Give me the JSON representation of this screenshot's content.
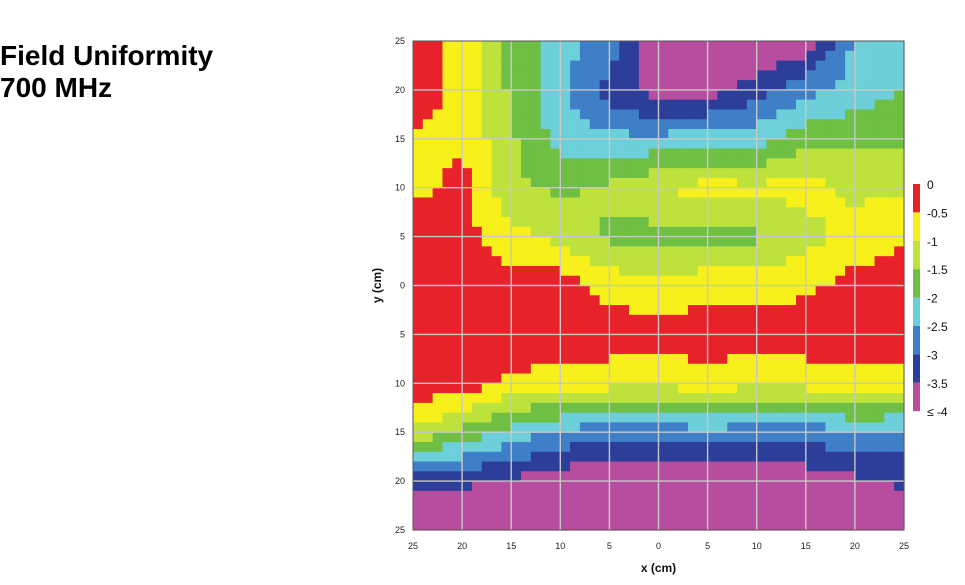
{
  "title": {
    "line1": "Field Uniformity",
    "line2": "700 MHz"
  },
  "chart_data": {
    "type": "heatmap",
    "xlabel": "x (cm)",
    "ylabel": "y (cm)",
    "xlim": [
      -25,
      25
    ],
    "ylim": [
      -25,
      25
    ],
    "x_tick_labels": [
      "25",
      "20",
      "15",
      "10",
      "5",
      "0",
      "5",
      "10",
      "15",
      "20",
      "25"
    ],
    "y_tick_labels": [
      "25",
      "20",
      "15",
      "10",
      "5",
      "0",
      "5",
      "10",
      "15",
      "20",
      "25"
    ],
    "grid": true,
    "legend_position": "right",
    "legend": {
      "labels": [
        "0",
        "-0.5",
        "-1",
        "-1.5",
        "-2",
        "-2.5",
        "-3",
        "-3.5",
        "≤ -4"
      ],
      "colors": [
        "#e8222a",
        "#f7f01a",
        "#bde23c",
        "#6fbf45",
        "#6ccfd9",
        "#3f7fc8",
        "#2d3e9a",
        "#b84da0"
      ]
    },
    "x": [
      -25,
      -20,
      -15,
      -10,
      -5,
      0,
      5,
      10,
      15,
      20,
      25
    ],
    "y": [
      25,
      20,
      15,
      10,
      5,
      0,
      -5,
      -10,
      -15,
      -20,
      -25
    ],
    "z": [
      [
        -0.2,
        -0.7,
        -1.6,
        -2.3,
        -2.7,
        -4.2,
        -4.2,
        -4.2,
        -3.8,
        -2.4,
        -2.0
      ],
      [
        -0.2,
        -0.7,
        -1.6,
        -2.4,
        -3.2,
        -3.8,
        -3.8,
        -3.2,
        -2.7,
        -2.3,
        -2.0
      ],
      [
        -0.6,
        -0.6,
        -1.4,
        -2.2,
        -2.4,
        -2.4,
        -2.2,
        -2.2,
        -1.7,
        -1.6,
        -1.6
      ],
      [
        -0.7,
        -0.3,
        -1.4,
        -1.6,
        -1.4,
        -1.0,
        -0.8,
        -0.9,
        -0.8,
        -1.1,
        -1.1
      ],
      [
        -0.1,
        -0.3,
        -0.8,
        -1.2,
        -1.6,
        -1.7,
        -1.6,
        -1.6,
        -1.2,
        -0.8,
        -0.6
      ],
      [
        -0.1,
        -0.1,
        -0.3,
        -0.2,
        -0.7,
        -0.9,
        -0.7,
        -0.7,
        -0.6,
        -0.3,
        -0.2
      ],
      [
        -0.1,
        -0.1,
        -0.1,
        -0.2,
        -0.2,
        -0.2,
        -0.2,
        -0.2,
        -0.2,
        -0.2,
        -0.2
      ],
      [
        -0.1,
        -0.2,
        -0.6,
        -0.7,
        -0.8,
        -0.9,
        -0.7,
        -0.9,
        -0.8,
        -0.7,
        -0.7
      ],
      [
        -1.1,
        -1.6,
        -2.2,
        -2.6,
        -2.8,
        -2.8,
        -2.6,
        -2.8,
        -2.8,
        -2.5,
        -2.6
      ],
      [
        -3.2,
        -3.4,
        -3.6,
        -3.8,
        -4.1,
        -4.2,
        -4.1,
        -4.1,
        -3.8,
        -3.6,
        -3.4
      ],
      [
        -4.2,
        -4.2,
        -4.2,
        -4.2,
        -4.2,
        -4.2,
        -4.2,
        -4.2,
        -4.2,
        -4.2,
        -4.2
      ]
    ]
  }
}
